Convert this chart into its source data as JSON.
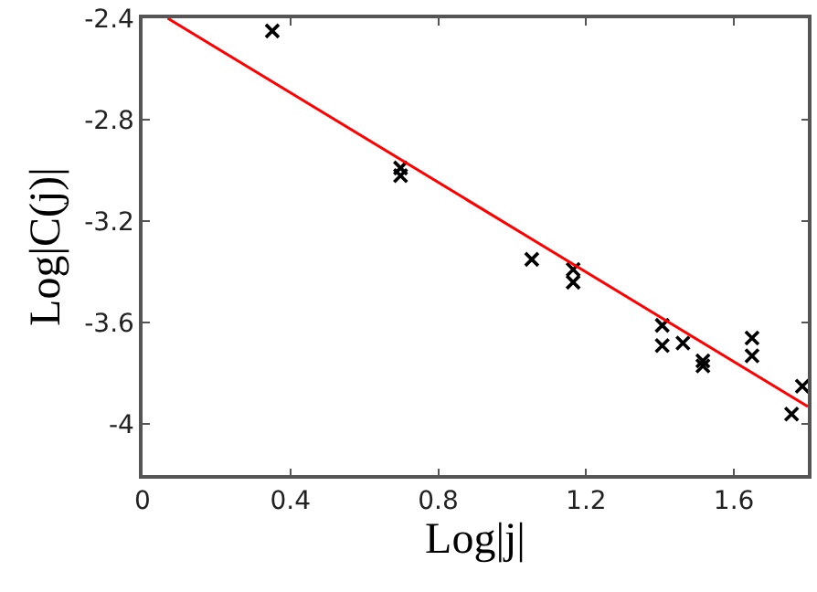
{
  "chart_data": {
    "type": "scatter",
    "xlabel": "Log|j|",
    "ylabel": "Log|C(j)|",
    "xlim": [
      0,
      1.8
    ],
    "xticks": [
      0,
      0.4,
      0.8,
      1.2,
      1.6
    ],
    "ylim": [
      -4.2,
      -2.4
    ],
    "yticks": [
      -4,
      -3.6,
      -3.2,
      -2.8,
      -2.4
    ],
    "series": [
      {
        "color": "#000000",
        "marker": "cross",
        "x": [
          0.351,
          0.698,
          0.698,
          1.053,
          1.165,
          1.165,
          1.406,
          1.406,
          1.462,
          1.516,
          1.516,
          1.649,
          1.649,
          1.756,
          1.785
        ],
        "values": [
          -2.45,
          -2.99,
          -3.02,
          -3.35,
          -3.39,
          -3.44,
          -3.61,
          -3.69,
          -3.68,
          -3.75,
          -3.77,
          -3.66,
          -3.73,
          -3.96,
          -3.85
        ]
      },
      {
        "type": "line",
        "color": "#ff0000",
        "x": [
          0.068,
          1.8
        ],
        "values": [
          -2.4,
          -3.93
        ]
      }
    ]
  }
}
